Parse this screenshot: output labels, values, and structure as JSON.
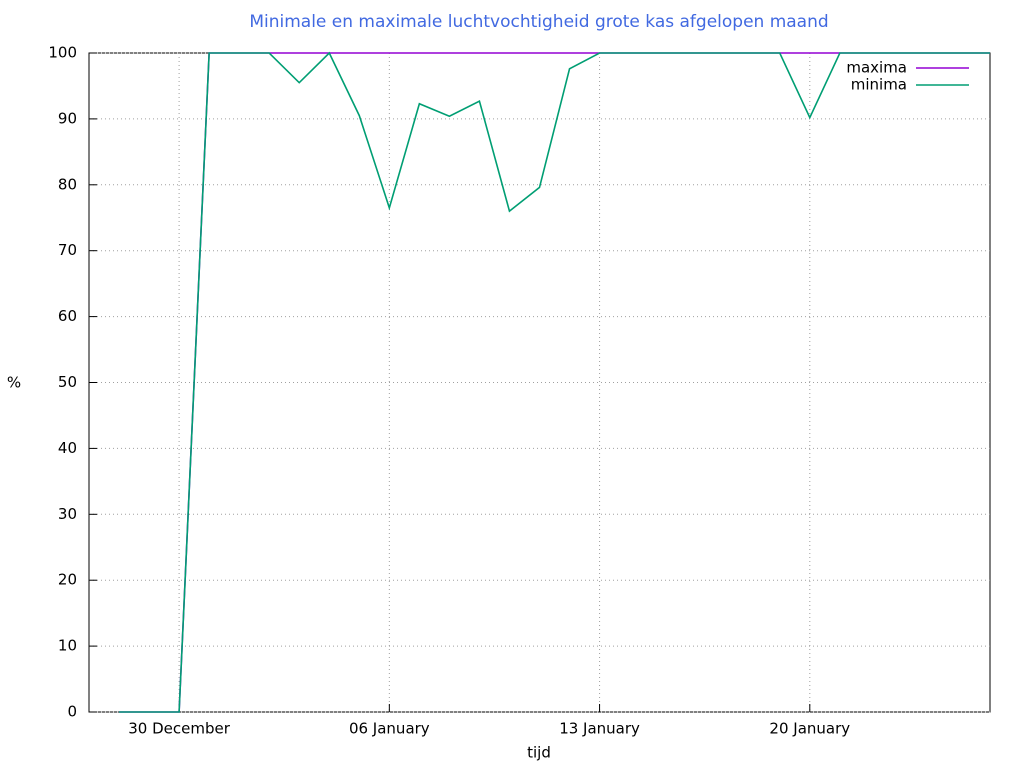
{
  "chart_data": {
    "type": "line",
    "title": "Minimale en maximale luchtvochtigheid grote kas afgelopen maand",
    "x_label": "tijd",
    "y_label": "%",
    "x": [
      "28 December",
      "29 December",
      "30 December",
      "31 December",
      "01 January",
      "02 January",
      "03 January",
      "04 January",
      "05 January",
      "06 January",
      "07 January",
      "08 January",
      "09 January",
      "10 January",
      "11 January",
      "12 January",
      "13 January",
      "14 January",
      "15 January",
      "16 January",
      "17 January",
      "18 January",
      "19 January",
      "20 January",
      "21 January",
      "22 January",
      "23 January",
      "24 January",
      "25 January",
      "26 January"
    ],
    "series": [
      {
        "name": "maxima",
        "color": "#9400d3",
        "values": [
          0,
          0,
          0,
          100,
          100,
          100,
          100,
          100,
          100,
          100,
          100,
          100,
          100,
          100,
          100,
          100,
          100,
          100,
          100,
          100,
          100,
          100,
          100,
          100,
          100,
          100,
          100,
          100,
          100,
          100
        ]
      },
      {
        "name": "minima",
        "color": "#009e73",
        "values": [
          0,
          0,
          0,
          100,
          100,
          100,
          95.5,
          100,
          90.5,
          76.5,
          92.3,
          90.4,
          92.7,
          76,
          79.6,
          97.6,
          100,
          100,
          100,
          100,
          100,
          100,
          100,
          90.2,
          100,
          100,
          100,
          100,
          100,
          100
        ]
      }
    ],
    "xlim": [
      "27 December",
      "26 January"
    ],
    "xticks": [
      "30 December",
      "06 January",
      "13 January",
      "20 January"
    ],
    "ylim": [
      0,
      100
    ],
    "yticks": [
      0,
      10,
      20,
      30,
      40,
      50,
      60,
      70,
      80,
      90,
      100
    ],
    "grid": true,
    "legend": "top-right"
  }
}
